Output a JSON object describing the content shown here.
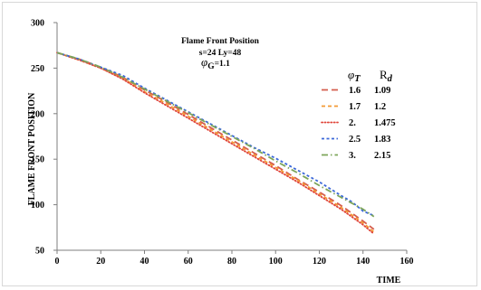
{
  "chart_data": {
    "type": "line",
    "title": "Flame Front Position",
    "subtitle_line1": "s=24  Ly=48",
    "subtitle_line2_symbol": "φ",
    "subtitle_line2_sub": "G",
    "subtitle_line2_value": "=1.1",
    "xlabel": "TIME",
    "ylabel": "FLAME FRONT POSITION",
    "xlim": [
      0,
      160
    ],
    "ylim": [
      50,
      300
    ],
    "xticks": [
      0,
      20,
      40,
      60,
      80,
      100,
      120,
      140,
      160
    ],
    "yticks": [
      50,
      100,
      150,
      200,
      250,
      300
    ],
    "grid": false,
    "legend_placement": "right",
    "legend_header": {
      "col1_symbol": "φ",
      "col1_sub": "T",
      "col2_symbol": "R",
      "col2_sub": "d"
    },
    "series": [
      {
        "name": "1.6",
        "rd": "1.09",
        "color": "#d55d4d",
        "dash": "long",
        "x": [
          0,
          10,
          20,
          30,
          40,
          50,
          60,
          70,
          80,
          90,
          100,
          110,
          120,
          130,
          140,
          145
        ],
        "y": [
          267,
          260,
          251,
          240,
          226,
          213,
          199,
          185,
          171,
          157,
          143,
          128,
          114,
          99,
          82,
          73
        ]
      },
      {
        "name": "1.7",
        "rd": "1.2",
        "color": "#f39a35",
        "dash": "medium",
        "x": [
          0,
          10,
          20,
          30,
          40,
          50,
          60,
          70,
          80,
          90,
          100,
          110,
          120,
          130,
          140,
          145
        ],
        "y": [
          267,
          259,
          250,
          239,
          224,
          211,
          197,
          183,
          169,
          155,
          141,
          127,
          112,
          97,
          80,
          70
        ]
      },
      {
        "name": "2.",
        "rd": "1.475",
        "color": "#e0453a",
        "dash": "dotted",
        "x": [
          0,
          10,
          20,
          30,
          40,
          50,
          60,
          70,
          80,
          90,
          100,
          110,
          120,
          130,
          140,
          145
        ],
        "y": [
          267,
          259,
          250,
          238,
          223,
          209,
          195,
          181,
          167,
          153,
          139,
          125,
          110,
          95,
          78,
          68
        ]
      },
      {
        "name": "2.5",
        "rd": "1.83",
        "color": "#3b68d9",
        "dash": "short",
        "x": [
          0,
          10,
          20,
          30,
          35,
          40,
          50,
          60,
          70,
          80,
          90,
          100,
          110,
          120,
          130,
          135,
          140,
          145
        ],
        "y": [
          267,
          260,
          251,
          242,
          235,
          228,
          215,
          202,
          189,
          176,
          163,
          151,
          138,
          125,
          110,
          103,
          93,
          88
        ]
      },
      {
        "name": "3.",
        "rd": "2.15",
        "color": "#7da55a",
        "dash": "dashdot",
        "x": [
          0,
          10,
          20,
          30,
          40,
          50,
          60,
          70,
          80,
          90,
          100,
          110,
          120,
          130,
          140,
          145
        ],
        "y": [
          267,
          260,
          251,
          240,
          227,
          214,
          201,
          188,
          175,
          162,
          148,
          135,
          121,
          108,
          95,
          87
        ]
      }
    ]
  }
}
